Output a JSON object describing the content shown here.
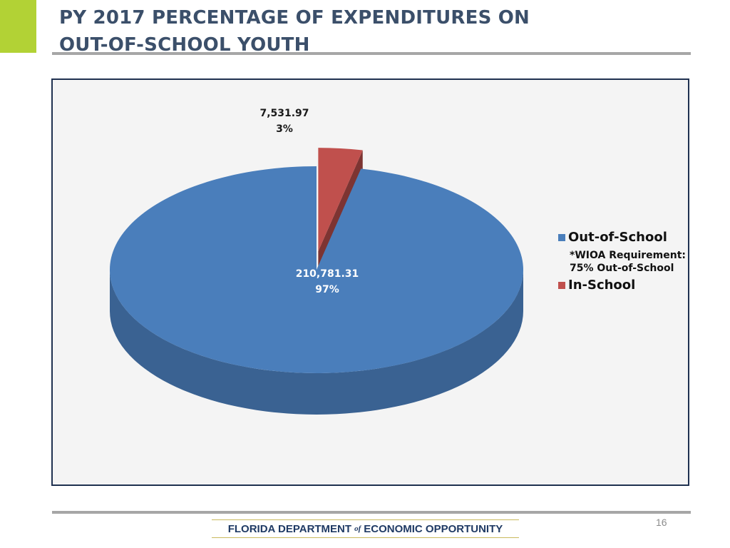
{
  "slide": {
    "title_line1": "PY 2017 PERCENTAGE OF EXPENDITURES ON",
    "title_line2": "OUT-OF-SCHOOL YOUTH",
    "page_number": "16",
    "footer": {
      "logo_part1": "FLORIDA DEPARTMENT",
      "logo_of": "of",
      "logo_part2": "ECONOMIC OPPORTUNITY"
    },
    "accent_color": "#b2d235"
  },
  "chart_data": {
    "type": "pie",
    "title": "",
    "style": "3d-exploded",
    "slices": [
      {
        "name": "Out-of-School",
        "value": 210781.31,
        "value_label": "210,781.31",
        "percent_label": "97%",
        "color": "#4a7ebb"
      },
      {
        "name": "In-School",
        "value": 7531.97,
        "value_label": "7,531.97",
        "percent_label": "3%",
        "color": "#c0504d"
      }
    ],
    "legend": {
      "position": "right",
      "note_line1": "*WIOA Requirement:",
      "note_line2": "75% Out-of-School"
    }
  }
}
